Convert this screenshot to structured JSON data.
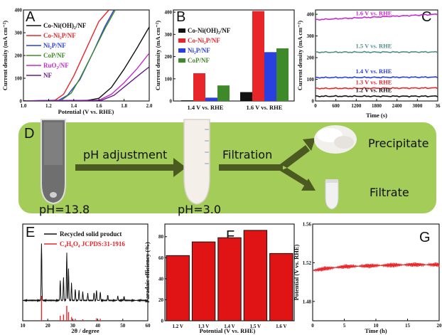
{
  "colors": {
    "black": "#111111",
    "red": "#e8262a",
    "blue": "#2a3fe0",
    "green": "#3e8a2a",
    "magenta": "#c62ad0",
    "purple": "#6a1a8e",
    "teal": "#4f8f8a",
    "banner": "#a3cc58",
    "arrow": "#4a5a20",
    "bar_f": "#e01414"
  },
  "panels": {
    "A": {
      "letter": "A",
      "xlabel": "Potential (V vs. RHE)",
      "ylabel": "Current density (mA cm⁻²)",
      "xticks": [
        "1.0",
        "1.2",
        "1.4",
        "1.6",
        "1.8",
        "2.0"
      ],
      "yticks": [
        "0",
        "100",
        "200",
        "300",
        "400"
      ]
    },
    "B": {
      "letter": "B",
      "ylabel": "Current density (mA cm⁻²)",
      "yticks": [
        "0",
        "100",
        "200",
        "300",
        "400"
      ]
    },
    "C": {
      "letter": "C",
      "xlabel": "Time (s)",
      "ylabel": "Current density (mA cm⁻²)",
      "xticks": [
        "0",
        "600",
        "1200",
        "1800",
        "2400",
        "3000",
        "36"
      ],
      "yticks": [
        "0",
        "100",
        "200",
        "300",
        "400"
      ]
    },
    "D": {
      "letter": "D",
      "step1": "pH adjustment",
      "step2": "Filtration",
      "out1": "Precipitate",
      "out2": "Filtrate",
      "ph1": "pH=13.8",
      "ph2": "pH=3.0"
    },
    "E": {
      "letter": "E",
      "xlabel": "2θ / degree",
      "xticks": [
        "10",
        "20",
        "30",
        "40",
        "50",
        "60"
      ],
      "legend": [
        "Recycled solid product",
        "C₄H₆O₄ JCPDS:31-1916"
      ]
    },
    "F": {
      "letter": "F",
      "xlabel": "Potential (V vs. RHE)",
      "ylabel": "Faradaic efficiency (%)",
      "yticks": [
        "0",
        "20",
        "40",
        "60",
        "80"
      ]
    },
    "G": {
      "letter": "G",
      "xlabel": "Time (h)",
      "ylabel": "Potential (V vs. RHE)",
      "xticks": [
        "0",
        "5",
        "10",
        "15",
        "20"
      ],
      "yticks": [
        "1.48",
        "1.52",
        "1.56"
      ]
    }
  },
  "chart_data": [
    {
      "panel": "A",
      "type": "line",
      "xlabel": "Potential (V vs. RHE)",
      "ylabel": "Current density (mA cm⁻²)",
      "xlim": [
        1.0,
        2.0
      ],
      "ylim": [
        0,
        400
      ],
      "series": [
        {
          "name": "Co-Ni(OH)₂/NF",
          "color": "#111111",
          "x": [
            1.0,
            1.5,
            1.6,
            1.7,
            1.8,
            1.9,
            2.0
          ],
          "y": [
            0,
            2,
            12,
            60,
            140,
            230,
            325
          ]
        },
        {
          "name": "Co-Ni₂P/NF",
          "color": "#e8262a",
          "x": [
            1.0,
            1.25,
            1.32,
            1.4,
            1.5,
            1.6,
            1.68
          ],
          "y": [
            0,
            3,
            30,
            110,
            230,
            350,
            400
          ]
        },
        {
          "name": "Ni₂P/NF",
          "color": "#2a3fe0",
          "x": [
            1.0,
            1.28,
            1.35,
            1.45,
            1.55,
            1.65,
            1.72
          ],
          "y": [
            0,
            3,
            25,
            95,
            210,
            330,
            400
          ]
        },
        {
          "name": "CoP/NF",
          "color": "#3e8a2a",
          "x": [
            1.0,
            1.3,
            1.38,
            1.45,
            1.55,
            1.65,
            1.73
          ],
          "y": [
            0,
            3,
            35,
            100,
            210,
            320,
            400
          ]
        },
        {
          "name": "RuO₂/NF",
          "color": "#c62ad0",
          "x": [
            1.0,
            1.6,
            1.7,
            1.8,
            1.9,
            2.0
          ],
          "y": [
            0,
            3,
            30,
            80,
            140,
            210
          ]
        },
        {
          "name": "NF",
          "color": "#6a1a8e",
          "x": [
            1.0,
            1.62,
            1.72,
            1.82,
            1.92,
            2.0
          ],
          "y": [
            0,
            3,
            25,
            70,
            115,
            150
          ]
        }
      ]
    },
    {
      "panel": "B",
      "type": "bar",
      "ylabel": "Current density (mA cm⁻²)",
      "ylim": [
        0,
        410
      ],
      "categories": [
        "1.4 V vs. RHE",
        "1.6 V vs. RHE"
      ],
      "series": [
        {
          "name": "Co-Ni(OH)₂/NF",
          "color": "#111111",
          "values": [
            3,
            40
          ]
        },
        {
          "name": "Co-Ni₂P/NF",
          "color": "#e8262a",
          "values": [
            125,
            405
          ]
        },
        {
          "name": "Ni₂P/NF",
          "color": "#2a3fe0",
          "values": [
            15,
            220
          ]
        },
        {
          "name": "CoP/NF",
          "color": "#3e8a2a",
          "values": [
            70,
            237
          ]
        }
      ]
    },
    {
      "panel": "C",
      "type": "line",
      "xlabel": "Time (s)",
      "ylabel": "Current density (mA cm⁻²)",
      "xlim": [
        0,
        3600
      ],
      "ylim": [
        0,
        420
      ],
      "series": [
        {
          "name": "1.6 V vs. RHE",
          "color": "#c62ad0",
          "x": [
            0,
            3600
          ],
          "y": [
            375,
            400
          ]
        },
        {
          "name": "1.5 V vs. RHE",
          "color": "#4f8f8a",
          "x": [
            0,
            3600
          ],
          "y": [
            225,
            226
          ]
        },
        {
          "name": "1.4 V vs. RHE",
          "color": "#2a3fe0",
          "x": [
            0,
            3600
          ],
          "y": [
            108,
            110
          ]
        },
        {
          "name": "1.3 V vs. RHE",
          "color": "#e8262a",
          "x": [
            0,
            3600
          ],
          "y": [
            58,
            60
          ]
        },
        {
          "name": "1.2 V vs. RHE",
          "color": "#111111",
          "x": [
            0,
            3600
          ],
          "y": [
            22,
            22
          ]
        }
      ]
    },
    {
      "panel": "E",
      "type": "line",
      "xlabel": "2θ / degree",
      "xlim": [
        10,
        60
      ],
      "series": [
        {
          "name": "Recycled solid product",
          "color": "#111111",
          "peaks_x": [
            17.5,
            25.0,
            26.3,
            27.6,
            28.3,
            29.5,
            31.0,
            32.5,
            34.0,
            36.0,
            38.5,
            39.5,
            41.0,
            44.0,
            48.0,
            50.5
          ],
          "peaks_y": [
            100,
            35,
            40,
            85,
            55,
            30,
            20,
            18,
            15,
            12,
            14,
            18,
            15,
            10,
            8,
            7
          ]
        },
        {
          "name": "C₄H₆O₄ JCPDS:31-1916",
          "color": "#e8262a",
          "x": [
            17.5,
            25.0,
            26.3,
            27.6,
            28.3,
            29.5,
            31.0,
            34.0,
            39.5,
            41.0
          ],
          "y": [
            100,
            20,
            25,
            60,
            35,
            15,
            8,
            6,
            10,
            8
          ]
        }
      ]
    },
    {
      "panel": "F",
      "type": "bar",
      "xlabel": "Potential (V vs. RHE)",
      "ylabel": "Faradaic efficiency (%)",
      "ylim": [
        0,
        92
      ],
      "categories": [
        "1.2 V",
        "1.3 V",
        "1.4 V",
        "1.5 V",
        "1.6 V"
      ],
      "values": [
        62,
        75,
        79,
        86,
        64
      ]
    },
    {
      "panel": "G",
      "type": "line",
      "xlabel": "Time (h)",
      "ylabel": "Potential (V vs. RHE)",
      "xlim": [
        0,
        20
      ],
      "ylim": [
        1.46,
        1.56
      ],
      "x": [
        0,
        2,
        5,
        10,
        15,
        20
      ],
      "y": [
        1.512,
        1.514,
        1.516,
        1.517,
        1.518,
        1.518
      ]
    }
  ]
}
